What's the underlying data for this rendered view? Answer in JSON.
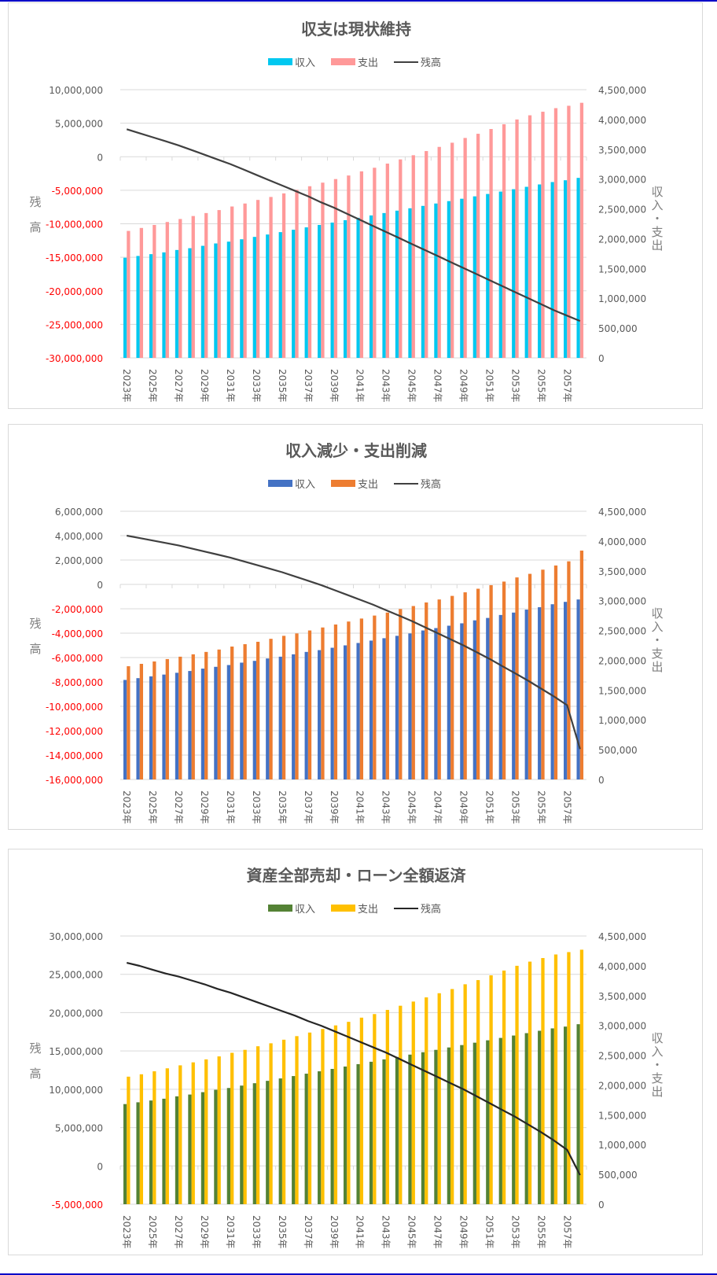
{
  "chart_data": [
    {
      "type": "bar+line",
      "title": "収支は現状維持",
      "legend": [
        "収入",
        "支出",
        "残高"
      ],
      "legend_position": "top",
      "colors": {
        "income": "#00c8f0",
        "expense": "#ff9999",
        "balance": "#404040"
      },
      "ylabel_left": "残高",
      "ylabel_right": "収入・支出",
      "ylim_left": [
        -30000000,
        10000000
      ],
      "ytick_step_left": 5000000,
      "ylim_right": [
        0,
        4500000
      ],
      "ytick_step_right": 500000,
      "grid": true,
      "categories": [
        "2023年",
        "2024年",
        "2025年",
        "2026年",
        "2027年",
        "2028年",
        "2029年",
        "2030年",
        "2031年",
        "2032年",
        "2033年",
        "2034年",
        "2035年",
        "2036年",
        "2037年",
        "2038年",
        "2039年",
        "2040年",
        "2041年",
        "2042年",
        "2043年",
        "2044年",
        "2045年",
        "2046年",
        "2047年",
        "2048年",
        "2049年",
        "2050年",
        "2051年",
        "2052年",
        "2053年",
        "2054年",
        "2055年",
        "2056年",
        "2057年",
        "2058年"
      ],
      "xtick_labels": [
        "2023年",
        "2025年",
        "2027年",
        "2029年",
        "2031年",
        "2033年",
        "2035年",
        "2037年",
        "2039年",
        "2041年",
        "2043年",
        "2045年",
        "2047年",
        "2049年",
        "2051年",
        "2053年",
        "2055年",
        "2057年"
      ],
      "yticks_left": [
        "10,000,000",
        "5,000,000",
        "0",
        "-5,000,000",
        "-10,000,000",
        "-15,000,000",
        "-20,000,000",
        "-25,000,000",
        "-30,000,000"
      ],
      "yticks_right": [
        "4,500,000",
        "4,000,000",
        "3,500,000",
        "3,000,000",
        "2,500,000",
        "2,000,000",
        "1,500,000",
        "1,000,000",
        "500,000",
        "0"
      ],
      "series": [
        {
          "name": "収入",
          "axis": "right",
          "values": [
            1680000,
            1710000,
            1740000,
            1770000,
            1810000,
            1840000,
            1880000,
            1920000,
            1950000,
            1990000,
            2030000,
            2070000,
            2110000,
            2150000,
            2190000,
            2230000,
            2270000,
            2310000,
            2350000,
            2390000,
            2430000,
            2470000,
            2510000,
            2550000,
            2590000,
            2630000,
            2670000,
            2710000,
            2750000,
            2790000,
            2830000,
            2870000,
            2910000,
            2950000,
            2980000,
            3020000
          ]
        },
        {
          "name": "支出",
          "axis": "right",
          "values": [
            2130000,
            2180000,
            2230000,
            2280000,
            2330000,
            2380000,
            2430000,
            2480000,
            2540000,
            2590000,
            2650000,
            2700000,
            2760000,
            2820000,
            2880000,
            2940000,
            3000000,
            3060000,
            3130000,
            3190000,
            3260000,
            3330000,
            3400000,
            3470000,
            3540000,
            3610000,
            3690000,
            3760000,
            3840000,
            3920000,
            4000000,
            4070000,
            4130000,
            4190000,
            4230000,
            4280000
          ]
        },
        {
          "name": "残高",
          "axis": "left",
          "type": "line",
          "values": [
            4100000,
            3500000,
            2900000,
            2300000,
            1700000,
            1000000,
            300000,
            -400000,
            -1100000,
            -1900000,
            -2700000,
            -3500000,
            -4300000,
            -5100000,
            -5900000,
            -6800000,
            -7600000,
            -8500000,
            -9400000,
            -10300000,
            -11200000,
            -12100000,
            -13000000,
            -13900000,
            -14800000,
            -15700000,
            -16600000,
            -17500000,
            -18400000,
            -19300000,
            -20200000,
            -21100000,
            -22000000,
            -22900000,
            -23700000,
            -24500000
          ]
        }
      ]
    },
    {
      "type": "bar+line",
      "title": "収入減少・支出削減",
      "legend": [
        "収入",
        "支出",
        "残高"
      ],
      "legend_position": "top",
      "colors": {
        "income": "#4472c4",
        "expense": "#ed7d31",
        "balance": "#404040"
      },
      "ylabel_left": "残高",
      "ylabel_right": "収入・支出",
      "ylim_left": [
        -16000000,
        6000000
      ],
      "ytick_step_left": 2000000,
      "ylim_right": [
        0,
        4500000
      ],
      "ytick_step_right": 500000,
      "grid": true,
      "categories": [
        "2023年",
        "2024年",
        "2025年",
        "2026年",
        "2027年",
        "2028年",
        "2029年",
        "2030年",
        "2031年",
        "2032年",
        "2033年",
        "2034年",
        "2035年",
        "2036年",
        "2037年",
        "2038年",
        "2039年",
        "2040年",
        "2041年",
        "2042年",
        "2043年",
        "2044年",
        "2045年",
        "2046年",
        "2047年",
        "2048年",
        "2049年",
        "2050年",
        "2051年",
        "2052年",
        "2053年",
        "2054年",
        "2055年",
        "2056年",
        "2057年",
        "2058年"
      ],
      "xtick_labels": [
        "2023年",
        "2025年",
        "2027年",
        "2029年",
        "2031年",
        "2033年",
        "2035年",
        "2037年",
        "2039年",
        "2041年",
        "2043年",
        "2045年",
        "2047年",
        "2049年",
        "2051年",
        "2053年",
        "2055年",
        "2057年"
      ],
      "yticks_left": [
        "6,000,000",
        "4,000,000",
        "2,000,000",
        "0",
        "-2,000,000",
        "-4,000,000",
        "-6,000,000",
        "-8,000,000",
        "-10,000,000",
        "-12,000,000",
        "-14,000,000",
        "-16,000,000"
      ],
      "yticks_right": [
        "4,500,000",
        "4,000,000",
        "3,500,000",
        "3,000,000",
        "2,500,000",
        "2,000,000",
        "1,500,000",
        "1,000,000",
        "500,000",
        "0"
      ],
      "series": [
        {
          "name": "収入",
          "axis": "right",
          "values": [
            1670000,
            1700000,
            1730000,
            1760000,
            1790000,
            1820000,
            1860000,
            1890000,
            1920000,
            1960000,
            1990000,
            2030000,
            2060000,
            2100000,
            2140000,
            2170000,
            2210000,
            2250000,
            2290000,
            2330000,
            2370000,
            2410000,
            2450000,
            2500000,
            2540000,
            2580000,
            2620000,
            2670000,
            2710000,
            2760000,
            2800000,
            2850000,
            2890000,
            2940000,
            2980000,
            3020000
          ]
        },
        {
          "name": "支出",
          "axis": "right",
          "values": [
            1900000,
            1940000,
            1980000,
            2020000,
            2060000,
            2100000,
            2140000,
            2180000,
            2230000,
            2270000,
            2310000,
            2360000,
            2410000,
            2450000,
            2500000,
            2550000,
            2600000,
            2650000,
            2700000,
            2750000,
            2800000,
            2860000,
            2910000,
            2970000,
            3020000,
            3080000,
            3140000,
            3200000,
            3260000,
            3320000,
            3390000,
            3450000,
            3520000,
            3590000,
            3660000,
            3840000
          ]
        },
        {
          "name": "残高",
          "axis": "left",
          "type": "line",
          "values": [
            4000000,
            3800000,
            3600000,
            3400000,
            3200000,
            2950000,
            2700000,
            2450000,
            2200000,
            1900000,
            1600000,
            1300000,
            1000000,
            650000,
            300000,
            -50000,
            -450000,
            -850000,
            -1250000,
            -1650000,
            -2100000,
            -2550000,
            -3000000,
            -3500000,
            -4000000,
            -4500000,
            -5000000,
            -5550000,
            -6100000,
            -6700000,
            -7300000,
            -7900000,
            -8550000,
            -9200000,
            -9900000,
            -13500000
          ]
        }
      ]
    },
    {
      "type": "bar+line",
      "title": "資産全部売却・ローン全額返済",
      "legend": [
        "収入",
        "支出",
        "残高"
      ],
      "legend_position": "top",
      "colors": {
        "income": "#548235",
        "expense": "#ffc000",
        "balance": "#262626"
      },
      "ylabel_left": "残高",
      "ylabel_right": "収入・支出",
      "ylim_left": [
        -5000000,
        30000000
      ],
      "ytick_step_left": 5000000,
      "ylim_right": [
        0,
        4500000
      ],
      "ytick_step_right": 500000,
      "grid": true,
      "categories": [
        "2023年",
        "2024年",
        "2025年",
        "2026年",
        "2027年",
        "2028年",
        "2029年",
        "2030年",
        "2031年",
        "2032年",
        "2033年",
        "2034年",
        "2035年",
        "2036年",
        "2037年",
        "2038年",
        "2039年",
        "2040年",
        "2041年",
        "2042年",
        "2043年",
        "2044年",
        "2045年",
        "2046年",
        "2047年",
        "2048年",
        "2049年",
        "2050年",
        "2051年",
        "2052年",
        "2053年",
        "2054年",
        "2055年",
        "2056年",
        "2057年",
        "2058年"
      ],
      "xtick_labels": [
        "2023年",
        "2025年",
        "2027年",
        "2029年",
        "2031年",
        "2033年",
        "2035年",
        "2037年",
        "2039年",
        "2041年",
        "2043年",
        "2045年",
        "2047年",
        "2049年",
        "2051年",
        "2053年",
        "2055年",
        "2057年"
      ],
      "yticks_left": [
        "30,000,000",
        "25,000,000",
        "20,000,000",
        "15,000,000",
        "10,000,000",
        "5,000,000",
        "0",
        "-5,000,000"
      ],
      "yticks_right": [
        "4,500,000",
        "4,000,000",
        "3,500,000",
        "3,000,000",
        "2,500,000",
        "2,000,000",
        "1,500,000",
        "1,000,000",
        "500,000",
        "0"
      ],
      "series": [
        {
          "name": "収入",
          "axis": "right",
          "values": [
            1680000,
            1710000,
            1740000,
            1770000,
            1810000,
            1840000,
            1880000,
            1920000,
            1950000,
            1990000,
            2030000,
            2070000,
            2110000,
            2150000,
            2190000,
            2230000,
            2270000,
            2310000,
            2350000,
            2390000,
            2430000,
            2470000,
            2510000,
            2550000,
            2590000,
            2630000,
            2670000,
            2710000,
            2750000,
            2790000,
            2830000,
            2870000,
            2910000,
            2950000,
            2980000,
            3020000
          ]
        },
        {
          "name": "支出",
          "axis": "right",
          "values": [
            2140000,
            2180000,
            2230000,
            2280000,
            2330000,
            2380000,
            2430000,
            2480000,
            2540000,
            2590000,
            2650000,
            2700000,
            2760000,
            2820000,
            2880000,
            2940000,
            3000000,
            3060000,
            3130000,
            3190000,
            3260000,
            3330000,
            3400000,
            3470000,
            3540000,
            3610000,
            3690000,
            3760000,
            3840000,
            3920000,
            4000000,
            4070000,
            4130000,
            4190000,
            4230000,
            4270000
          ]
        },
        {
          "name": "残高",
          "axis": "left",
          "type": "line",
          "values": [
            26500000,
            26100000,
            25600000,
            25100000,
            24700000,
            24200000,
            23700000,
            23100000,
            22600000,
            22000000,
            21400000,
            20800000,
            20200000,
            19600000,
            18900000,
            18300000,
            17600000,
            16900000,
            16200000,
            15500000,
            14800000,
            14000000,
            13200000,
            12400000,
            11600000,
            10800000,
            10000000,
            9100000,
            8200000,
            7300000,
            6400000,
            5400000,
            4400000,
            3300000,
            2100000,
            -1200000
          ]
        }
      ]
    }
  ]
}
